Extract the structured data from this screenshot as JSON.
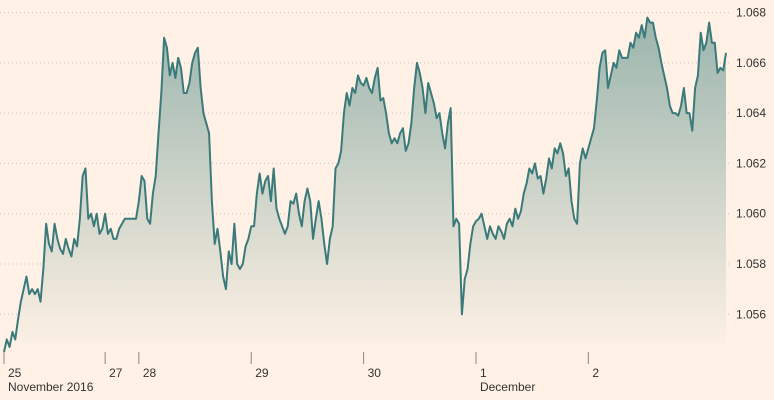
{
  "chart_data": {
    "type": "area",
    "title": "",
    "xlabel": "",
    "ylabel": "",
    "ylim": [
      1.0545,
      1.0685
    ],
    "y_ticks": [
      1.056,
      1.058,
      1.06,
      1.062,
      1.064,
      1.066,
      1.068
    ],
    "y_tick_labels": [
      "1.056",
      "1.058",
      "1.060",
      "1.062",
      "1.064",
      "1.066",
      "1.068"
    ],
    "grid": true,
    "legend": "none",
    "colors": {
      "line": "#3a7a7a",
      "fill_top": "#9ab5ad",
      "fill_bottom": "#fff1e5",
      "background": "#fff1e5"
    },
    "x_ticks": [
      {
        "label": "25",
        "sublabel": "November 2016",
        "index": 0
      },
      {
        "label": "27",
        "sublabel": "",
        "index": 36
      },
      {
        "label": "28",
        "sublabel": "",
        "index": 48
      },
      {
        "label": "29",
        "sublabel": "",
        "index": 88
      },
      {
        "label": "30",
        "sublabel": "",
        "index": 128
      },
      {
        "label": "1",
        "sublabel": "December",
        "index": 168
      },
      {
        "label": "2",
        "sublabel": "",
        "index": 208
      }
    ],
    "series": [
      {
        "values": [
          1.0545,
          1.055,
          1.0547,
          1.0553,
          1.055,
          1.0558,
          1.0565,
          1.057,
          1.0575,
          1.0568,
          1.057,
          1.0568,
          1.057,
          1.0565,
          1.0578,
          1.0596,
          1.0588,
          1.0585,
          1.0596,
          1.059,
          1.0586,
          1.0584,
          1.059,
          1.0586,
          1.0583,
          1.059,
          1.0587,
          1.0598,
          1.0615,
          1.0618,
          1.0598,
          1.06,
          1.0595,
          1.06,
          1.0592,
          1.0594,
          1.06,
          1.0592,
          1.0594,
          1.059,
          1.059,
          1.0594,
          1.0596,
          1.0598,
          1.0598,
          1.0598,
          1.0598,
          1.0598,
          1.0605,
          1.0615,
          1.0613,
          1.0598,
          1.0596,
          1.0608,
          1.0615,
          1.0632,
          1.0648,
          1.067,
          1.0666,
          1.0655,
          1.066,
          1.0654,
          1.0662,
          1.0658,
          1.0648,
          1.0648,
          1.0652,
          1.066,
          1.0664,
          1.0666,
          1.065,
          1.064,
          1.0636,
          1.0632,
          1.0605,
          1.0588,
          1.0594,
          1.0585,
          1.0575,
          1.057,
          1.0585,
          1.058,
          1.0596,
          1.058,
          1.0578,
          1.058,
          1.0587,
          1.059,
          1.0595,
          1.0595,
          1.0608,
          1.0616,
          1.0608,
          1.0613,
          1.0615,
          1.0605,
          1.0618,
          1.0602,
          1.0598,
          1.0595,
          1.0592,
          1.0595,
          1.0605,
          1.0604,
          1.0608,
          1.06,
          1.0595,
          1.0605,
          1.061,
          1.0605,
          1.059,
          1.0598,
          1.0605,
          1.0598,
          1.0588,
          1.058,
          1.059,
          1.0595,
          1.0618,
          1.062,
          1.0625,
          1.064,
          1.0648,
          1.0643,
          1.065,
          1.0648,
          1.0655,
          1.0652,
          1.0651,
          1.0654,
          1.065,
          1.0648,
          1.0654,
          1.0658,
          1.0645,
          1.0646,
          1.064,
          1.0632,
          1.0628,
          1.063,
          1.0628,
          1.0632,
          1.0634,
          1.0625,
          1.0628,
          1.0636,
          1.065,
          1.066,
          1.0656,
          1.065,
          1.064,
          1.0652,
          1.0648,
          1.0644,
          1.0638,
          1.064,
          1.0632,
          1.0626,
          1.0636,
          1.0642,
          1.0595,
          1.0598,
          1.0596,
          1.056,
          1.0574,
          1.0578,
          1.0588,
          1.0595,
          1.0597,
          1.0598,
          1.06,
          1.0595,
          1.059,
          1.0595,
          1.0592,
          1.059,
          1.0595,
          1.0593,
          1.059,
          1.0596,
          1.0598,
          1.0595,
          1.0602,
          1.0598,
          1.0601,
          1.0608,
          1.0612,
          1.0618,
          1.0616,
          1.062,
          1.0614,
          1.0615,
          1.0608,
          1.0614,
          1.0622,
          1.0618,
          1.0626,
          1.0624,
          1.0628,
          1.0624,
          1.0615,
          1.0618,
          1.0605,
          1.0598,
          1.0596,
          1.062,
          1.0626,
          1.0622,
          1.0626,
          1.063,
          1.0634,
          1.0645,
          1.0658,
          1.0664,
          1.0665,
          1.065,
          1.0655,
          1.066,
          1.0658,
          1.0665,
          1.0662,
          1.0662,
          1.0662,
          1.0668,
          1.0666,
          1.0672,
          1.067,
          1.0675,
          1.067,
          1.0678,
          1.0676,
          1.0676,
          1.067,
          1.0666,
          1.066,
          1.0655,
          1.065,
          1.0643,
          1.064,
          1.064,
          1.0639,
          1.0643,
          1.065,
          1.064,
          1.064,
          1.0633,
          1.065,
          1.0655,
          1.0672,
          1.0665,
          1.0668,
          1.0676,
          1.0668,
          1.0668,
          1.0656,
          1.0658,
          1.0657,
          1.0664
        ]
      }
    ]
  }
}
